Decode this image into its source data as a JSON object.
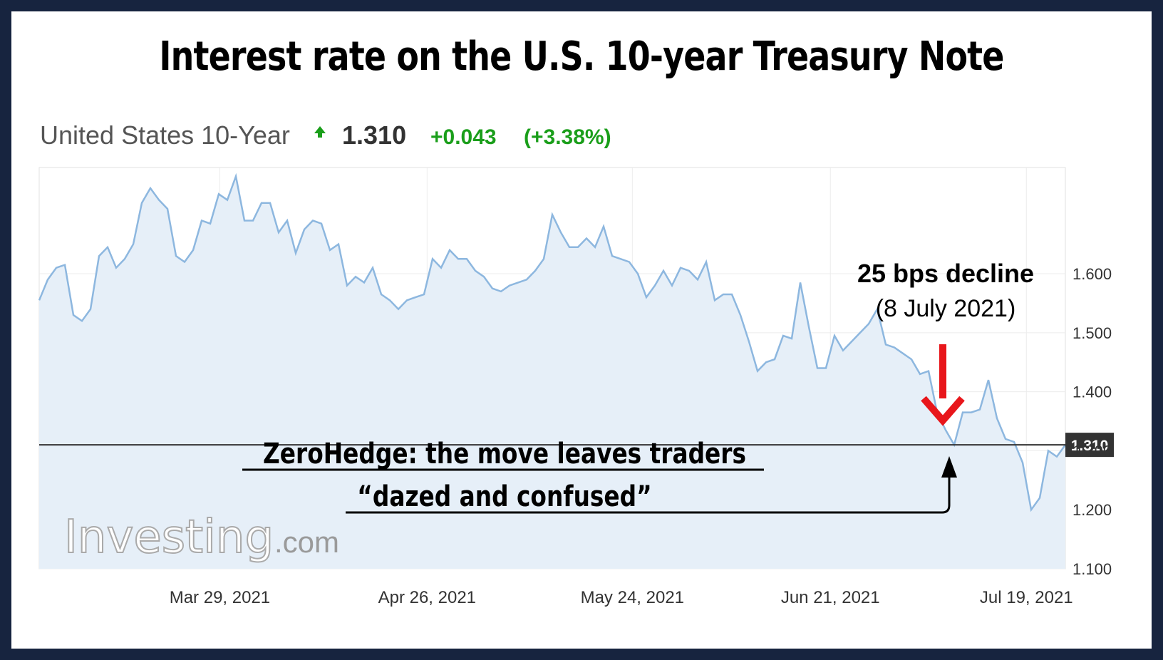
{
  "title": "Interest rate on the U.S. 10-year Treasury Note",
  "header": {
    "instrument": "United States 10-Year",
    "value": "1.310",
    "change": "+0.043",
    "change_pct": "(+3.38%)"
  },
  "watermark": {
    "brand": "Investing",
    "suffix": ".com"
  },
  "current_label": "1.310",
  "annotations": {
    "decline_title": "25 bps decline",
    "decline_date": "(8 July 2021)",
    "zerohedge_line1": "ZeroHedge: the move leaves traders",
    "zerohedge_line2": "“dazed and confused”"
  },
  "colors": {
    "frame": "#17243f",
    "area_fill": "#e6eff8",
    "line": "#8db7df",
    "up": "#1a9e1a",
    "arrow": "#e8161b",
    "current_box": "#333333"
  },
  "chart_data": {
    "type": "area",
    "title": "",
    "xlabel": "",
    "ylabel": "",
    "x_ticks": [
      "Mar 29, 2021",
      "Apr 26, 2021",
      "May 24, 2021",
      "Jun 21, 2021",
      "Jul 19, 2021"
    ],
    "y_ticks": [
      "1.600",
      "1.500",
      "1.400",
      "1.300",
      "1.200",
      "1.100"
    ],
    "ylim": [
      1.1,
      1.78
    ],
    "y_axis_side": "right",
    "grid": true,
    "current_value": 1.31,
    "series": [
      {
        "values": [
          1.555,
          1.59,
          1.61,
          1.615,
          1.53,
          1.52,
          1.54,
          1.63,
          1.645,
          1.61,
          1.625,
          1.65,
          1.72,
          1.745,
          1.725,
          1.71,
          1.63,
          1.62,
          1.64,
          1.69,
          1.685,
          1.735,
          1.725,
          1.765,
          1.69,
          1.69,
          1.72,
          1.72,
          1.67,
          1.69,
          1.635,
          1.675,
          1.69,
          1.685,
          1.64,
          1.65,
          1.58,
          1.595,
          1.585,
          1.61,
          1.565,
          1.555,
          1.54,
          1.555,
          1.56,
          1.565,
          1.625,
          1.61,
          1.64,
          1.625,
          1.625,
          1.605,
          1.595,
          1.575,
          1.57,
          1.58,
          1.585,
          1.59,
          1.605,
          1.625,
          1.7,
          1.67,
          1.645,
          1.645,
          1.66,
          1.645,
          1.68,
          1.63,
          1.625,
          1.62,
          1.6,
          1.56,
          1.58,
          1.605,
          1.58,
          1.61,
          1.605,
          1.59,
          1.62,
          1.555,
          1.565,
          1.565,
          1.53,
          1.485,
          1.435,
          1.45,
          1.455,
          1.495,
          1.49,
          1.585,
          1.51,
          1.44,
          1.44,
          1.495,
          1.47,
          1.485,
          1.5,
          1.515,
          1.54,
          1.48,
          1.475,
          1.465,
          1.455,
          1.43,
          1.435,
          1.365,
          1.335,
          1.31,
          1.365,
          1.365,
          1.37,
          1.42,
          1.355,
          1.32,
          1.315,
          1.28,
          1.2,
          1.22,
          1.3,
          1.29,
          1.31
        ]
      }
    ]
  }
}
